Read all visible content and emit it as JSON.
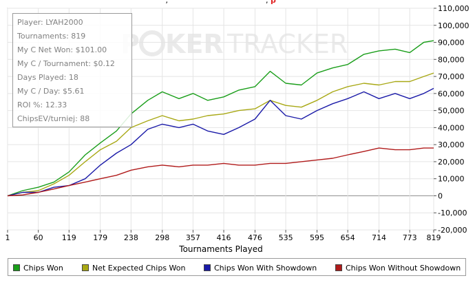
{
  "header_fragment": {
    "left": "' ,",
    "right_prefix": ", ",
    "right_red": "p"
  },
  "info": {
    "lines": [
      "Player: LYAH2000",
      "Tournaments: 819",
      "My C Net Won: $101.00",
      "My C / Tournament: $0.12",
      "Days Played: 18",
      "My C / Day: $5.61",
      "ROI %: 12.33",
      "ChipsEV/turniej: 88"
    ]
  },
  "watermark": {
    "part1": "P",
    "part2": "KER",
    "part3": "TRACKER"
  },
  "chart_data": {
    "type": "line",
    "title": "",
    "xlabel": "Tournaments Played",
    "ylabel": "",
    "x_ticks": [
      1,
      60,
      119,
      179,
      238,
      298,
      357,
      416,
      476,
      535,
      595,
      654,
      714,
      773,
      819
    ],
    "y_ticks": [
      -20000,
      -10000,
      0,
      10000,
      20000,
      30000,
      40000,
      50000,
      60000,
      70000,
      80000,
      90000,
      100000,
      110000
    ],
    "y_tick_labels": [
      "-20,000",
      "-10,000",
      "0",
      "10,000",
      "20,000",
      "30,000",
      "40,000",
      "50,000",
      "60,000",
      "70,000",
      "80,000",
      "90,000",
      "100,000",
      "110,000"
    ],
    "xlim": [
      1,
      819
    ],
    "ylim": [
      -20000,
      110000
    ],
    "grid": true,
    "legend_position": "bottom",
    "x": [
      1,
      30,
      60,
      90,
      119,
      150,
      179,
      210,
      238,
      270,
      298,
      330,
      357,
      385,
      416,
      445,
      476,
      505,
      535,
      565,
      595,
      625,
      654,
      685,
      714,
      745,
      773,
      800,
      819
    ],
    "series": [
      {
        "name": "Chips Won",
        "color": "#1a9e1a",
        "values": [
          0,
          3000,
          5000,
          8000,
          14000,
          24000,
          31000,
          38000,
          48000,
          56000,
          61000,
          57000,
          60000,
          56000,
          58000,
          62000,
          64000,
          73000,
          66000,
          65000,
          72000,
          75000,
          77000,
          83000,
          85000,
          86000,
          84000,
          90000,
          91000
        ]
      },
      {
        "name": "Net Expected Chips Won",
        "color": "#a8a814",
        "values": [
          0,
          2000,
          3000,
          7000,
          12000,
          20000,
          27000,
          32000,
          40000,
          44000,
          47000,
          44000,
          45000,
          47000,
          48000,
          50000,
          51000,
          56000,
          53000,
          52000,
          56000,
          61000,
          64000,
          66000,
          65000,
          67000,
          67000,
          70000,
          72000
        ]
      },
      {
        "name": "Chips Won With Showdown",
        "color": "#1a1aa8",
        "values": [
          0,
          2000,
          2000,
          5000,
          6000,
          10000,
          18000,
          25000,
          30000,
          39000,
          42000,
          40000,
          42000,
          38000,
          36000,
          40000,
          45000,
          56000,
          47000,
          45000,
          50000,
          54000,
          57000,
          61000,
          57000,
          60000,
          57000,
          60000,
          63000
        ]
      },
      {
        "name": "Chips Won Without Showdown",
        "color": "#b01a1a",
        "values": [
          0,
          500,
          2000,
          4000,
          6000,
          8000,
          10000,
          12000,
          15000,
          17000,
          18000,
          17000,
          18000,
          18000,
          19000,
          18000,
          18000,
          19000,
          19000,
          20000,
          21000,
          22000,
          24000,
          26000,
          28000,
          27000,
          27000,
          28000,
          28000
        ]
      }
    ]
  }
}
